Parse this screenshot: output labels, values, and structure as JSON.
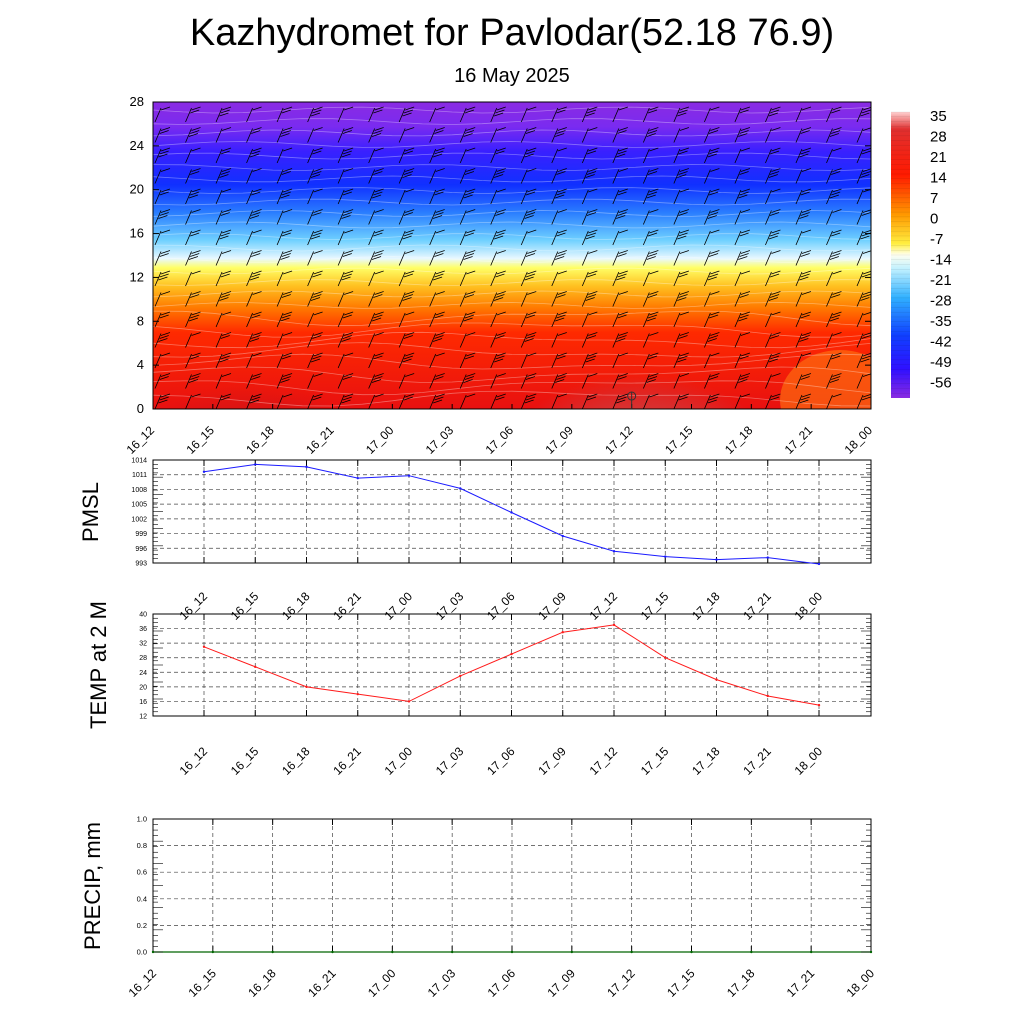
{
  "header": {
    "title": "Kazhydromet for Pavlodar(52.18 76.9)",
    "date": "16 May 2025"
  },
  "chart_data": [
    {
      "type": "heatmap",
      "panel": "temperature-cross-section",
      "x": [
        "16_12",
        "16_15",
        "16_18",
        "16_21",
        "17_00",
        "17_03",
        "17_06",
        "17_09",
        "17_12",
        "17_15",
        "17_18",
        "17_21",
        "18_00"
      ],
      "y_ticks": [
        0,
        4,
        8,
        12,
        16,
        20,
        24,
        28
      ],
      "ylim": [
        0,
        28
      ],
      "colorbar": {
        "labels": [
          "35",
          "28",
          "21",
          "14",
          "7",
          "0",
          "-7",
          "-14",
          "-21",
          "-28",
          "-35",
          "-42",
          "-49",
          "-56"
        ],
        "colors": [
          "#ff0000",
          "#ffff33",
          "#33bbff",
          "#1030ff",
          "#8a2be2"
        ]
      },
      "max_marker": {
        "x": "17_12",
        "y": 1
      }
    },
    {
      "type": "line",
      "panel": "pmsl",
      "ylabel": "PMSL",
      "x": [
        "16_12",
        "16_15",
        "16_18",
        "16_21",
        "17_00",
        "17_03",
        "17_06",
        "17_09",
        "17_12",
        "17_15",
        "17_18",
        "17_21",
        "18_00"
      ],
      "y_ticks": [
        "1014",
        "1011",
        "1008",
        "1005",
        "1002",
        "999",
        "996",
        "993"
      ],
      "ylim": [
        993,
        1014
      ],
      "color": "#1a1aff",
      "values": [
        1011.6,
        1013.1,
        1012.6,
        1010.3,
        1010.8,
        1008.2,
        1003.3,
        998.5,
        995.4,
        994.3,
        993.7,
        994.1,
        992.8
      ]
    },
    {
      "type": "line",
      "panel": "temp-2m",
      "ylabel": "TEMP at 2 M",
      "x": [
        "16_12",
        "16_15",
        "16_18",
        "16_21",
        "17_00",
        "17_03",
        "17_06",
        "17_09",
        "17_12",
        "17_15",
        "17_18",
        "17_21",
        "18_00"
      ],
      "y_ticks": [
        "40",
        "36",
        "32",
        "28",
        "24",
        "20",
        "16",
        "12"
      ],
      "ylim": [
        12,
        40
      ],
      "color": "#ff1a1a",
      "values": [
        31.0,
        25.5,
        20.0,
        18.0,
        16.0,
        23.0,
        29.0,
        35.0,
        37.0,
        28.0,
        22.0,
        17.5,
        15.0
      ]
    },
    {
      "type": "line",
      "panel": "precip",
      "ylabel": "PRECIP, mm",
      "x": [
        "16_12",
        "16_15",
        "16_18",
        "16_21",
        "17_00",
        "17_03",
        "17_06",
        "17_09",
        "17_12",
        "17_15",
        "17_18",
        "17_21",
        "18_00"
      ],
      "y_ticks": [
        "1.0",
        "0.8",
        "0.6",
        "0.4",
        "0.2",
        "0.0"
      ],
      "ylim": [
        0,
        1
      ],
      "color": "#006400",
      "values": [
        0,
        0,
        0,
        0,
        0,
        0,
        0,
        0,
        0,
        0,
        0,
        0,
        0
      ]
    }
  ]
}
